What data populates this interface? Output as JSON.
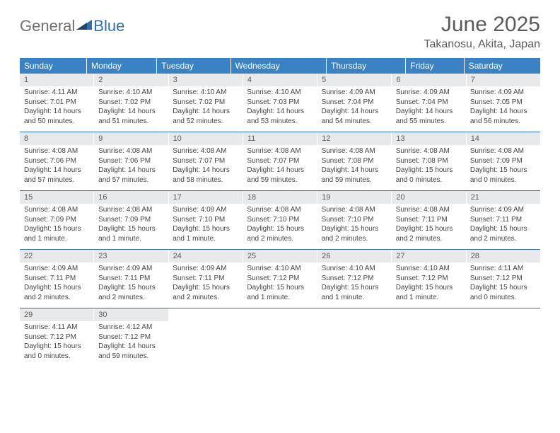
{
  "logo": {
    "general": "General",
    "blue": "Blue"
  },
  "title": "June 2025",
  "location": "Takanosu, Akita, Japan",
  "colors": {
    "header_bg": "#3b82c4",
    "header_text": "#ffffff",
    "daynum_bg": "#e7e9eb",
    "text": "#5a5a5a",
    "rule": "#2f6fb0",
    "logo_gray": "#6f6f6f",
    "logo_blue": "#2f6fb0"
  },
  "typography": {
    "title_size": 30,
    "location_size": 16,
    "dow_size": 12,
    "cell_size": 10
  },
  "days_of_week": [
    "Sunday",
    "Monday",
    "Tuesday",
    "Wednesday",
    "Thursday",
    "Friday",
    "Saturday"
  ],
  "weeks": [
    [
      {
        "n": "1",
        "sunrise": "4:11 AM",
        "sunset": "7:01 PM",
        "daylight": "14 hours and 50 minutes."
      },
      {
        "n": "2",
        "sunrise": "4:10 AM",
        "sunset": "7:02 PM",
        "daylight": "14 hours and 51 minutes."
      },
      {
        "n": "3",
        "sunrise": "4:10 AM",
        "sunset": "7:02 PM",
        "daylight": "14 hours and 52 minutes."
      },
      {
        "n": "4",
        "sunrise": "4:10 AM",
        "sunset": "7:03 PM",
        "daylight": "14 hours and 53 minutes."
      },
      {
        "n": "5",
        "sunrise": "4:09 AM",
        "sunset": "7:04 PM",
        "daylight": "14 hours and 54 minutes."
      },
      {
        "n": "6",
        "sunrise": "4:09 AM",
        "sunset": "7:04 PM",
        "daylight": "14 hours and 55 minutes."
      },
      {
        "n": "7",
        "sunrise": "4:09 AM",
        "sunset": "7:05 PM",
        "daylight": "14 hours and 56 minutes."
      }
    ],
    [
      {
        "n": "8",
        "sunrise": "4:08 AM",
        "sunset": "7:06 PM",
        "daylight": "14 hours and 57 minutes."
      },
      {
        "n": "9",
        "sunrise": "4:08 AM",
        "sunset": "7:06 PM",
        "daylight": "14 hours and 57 minutes."
      },
      {
        "n": "10",
        "sunrise": "4:08 AM",
        "sunset": "7:07 PM",
        "daylight": "14 hours and 58 minutes."
      },
      {
        "n": "11",
        "sunrise": "4:08 AM",
        "sunset": "7:07 PM",
        "daylight": "14 hours and 59 minutes."
      },
      {
        "n": "12",
        "sunrise": "4:08 AM",
        "sunset": "7:08 PM",
        "daylight": "14 hours and 59 minutes."
      },
      {
        "n": "13",
        "sunrise": "4:08 AM",
        "sunset": "7:08 PM",
        "daylight": "15 hours and 0 minutes."
      },
      {
        "n": "14",
        "sunrise": "4:08 AM",
        "sunset": "7:09 PM",
        "daylight": "15 hours and 0 minutes."
      }
    ],
    [
      {
        "n": "15",
        "sunrise": "4:08 AM",
        "sunset": "7:09 PM",
        "daylight": "15 hours and 1 minute."
      },
      {
        "n": "16",
        "sunrise": "4:08 AM",
        "sunset": "7:09 PM",
        "daylight": "15 hours and 1 minute."
      },
      {
        "n": "17",
        "sunrise": "4:08 AM",
        "sunset": "7:10 PM",
        "daylight": "15 hours and 1 minute."
      },
      {
        "n": "18",
        "sunrise": "4:08 AM",
        "sunset": "7:10 PM",
        "daylight": "15 hours and 2 minutes."
      },
      {
        "n": "19",
        "sunrise": "4:08 AM",
        "sunset": "7:10 PM",
        "daylight": "15 hours and 2 minutes."
      },
      {
        "n": "20",
        "sunrise": "4:08 AM",
        "sunset": "7:11 PM",
        "daylight": "15 hours and 2 minutes."
      },
      {
        "n": "21",
        "sunrise": "4:09 AM",
        "sunset": "7:11 PM",
        "daylight": "15 hours and 2 minutes."
      }
    ],
    [
      {
        "n": "22",
        "sunrise": "4:09 AM",
        "sunset": "7:11 PM",
        "daylight": "15 hours and 2 minutes."
      },
      {
        "n": "23",
        "sunrise": "4:09 AM",
        "sunset": "7:11 PM",
        "daylight": "15 hours and 2 minutes."
      },
      {
        "n": "24",
        "sunrise": "4:09 AM",
        "sunset": "7:11 PM",
        "daylight": "15 hours and 2 minutes."
      },
      {
        "n": "25",
        "sunrise": "4:10 AM",
        "sunset": "7:12 PM",
        "daylight": "15 hours and 1 minute."
      },
      {
        "n": "26",
        "sunrise": "4:10 AM",
        "sunset": "7:12 PM",
        "daylight": "15 hours and 1 minute."
      },
      {
        "n": "27",
        "sunrise": "4:10 AM",
        "sunset": "7:12 PM",
        "daylight": "15 hours and 1 minute."
      },
      {
        "n": "28",
        "sunrise": "4:11 AM",
        "sunset": "7:12 PM",
        "daylight": "15 hours and 0 minutes."
      }
    ],
    [
      {
        "n": "29",
        "sunrise": "4:11 AM",
        "sunset": "7:12 PM",
        "daylight": "15 hours and 0 minutes."
      },
      {
        "n": "30",
        "sunrise": "4:12 AM",
        "sunset": "7:12 PM",
        "daylight": "14 hours and 59 minutes."
      },
      null,
      null,
      null,
      null,
      null
    ]
  ],
  "labels": {
    "sunrise": "Sunrise: ",
    "sunset": "Sunset: ",
    "daylight": "Daylight: "
  }
}
